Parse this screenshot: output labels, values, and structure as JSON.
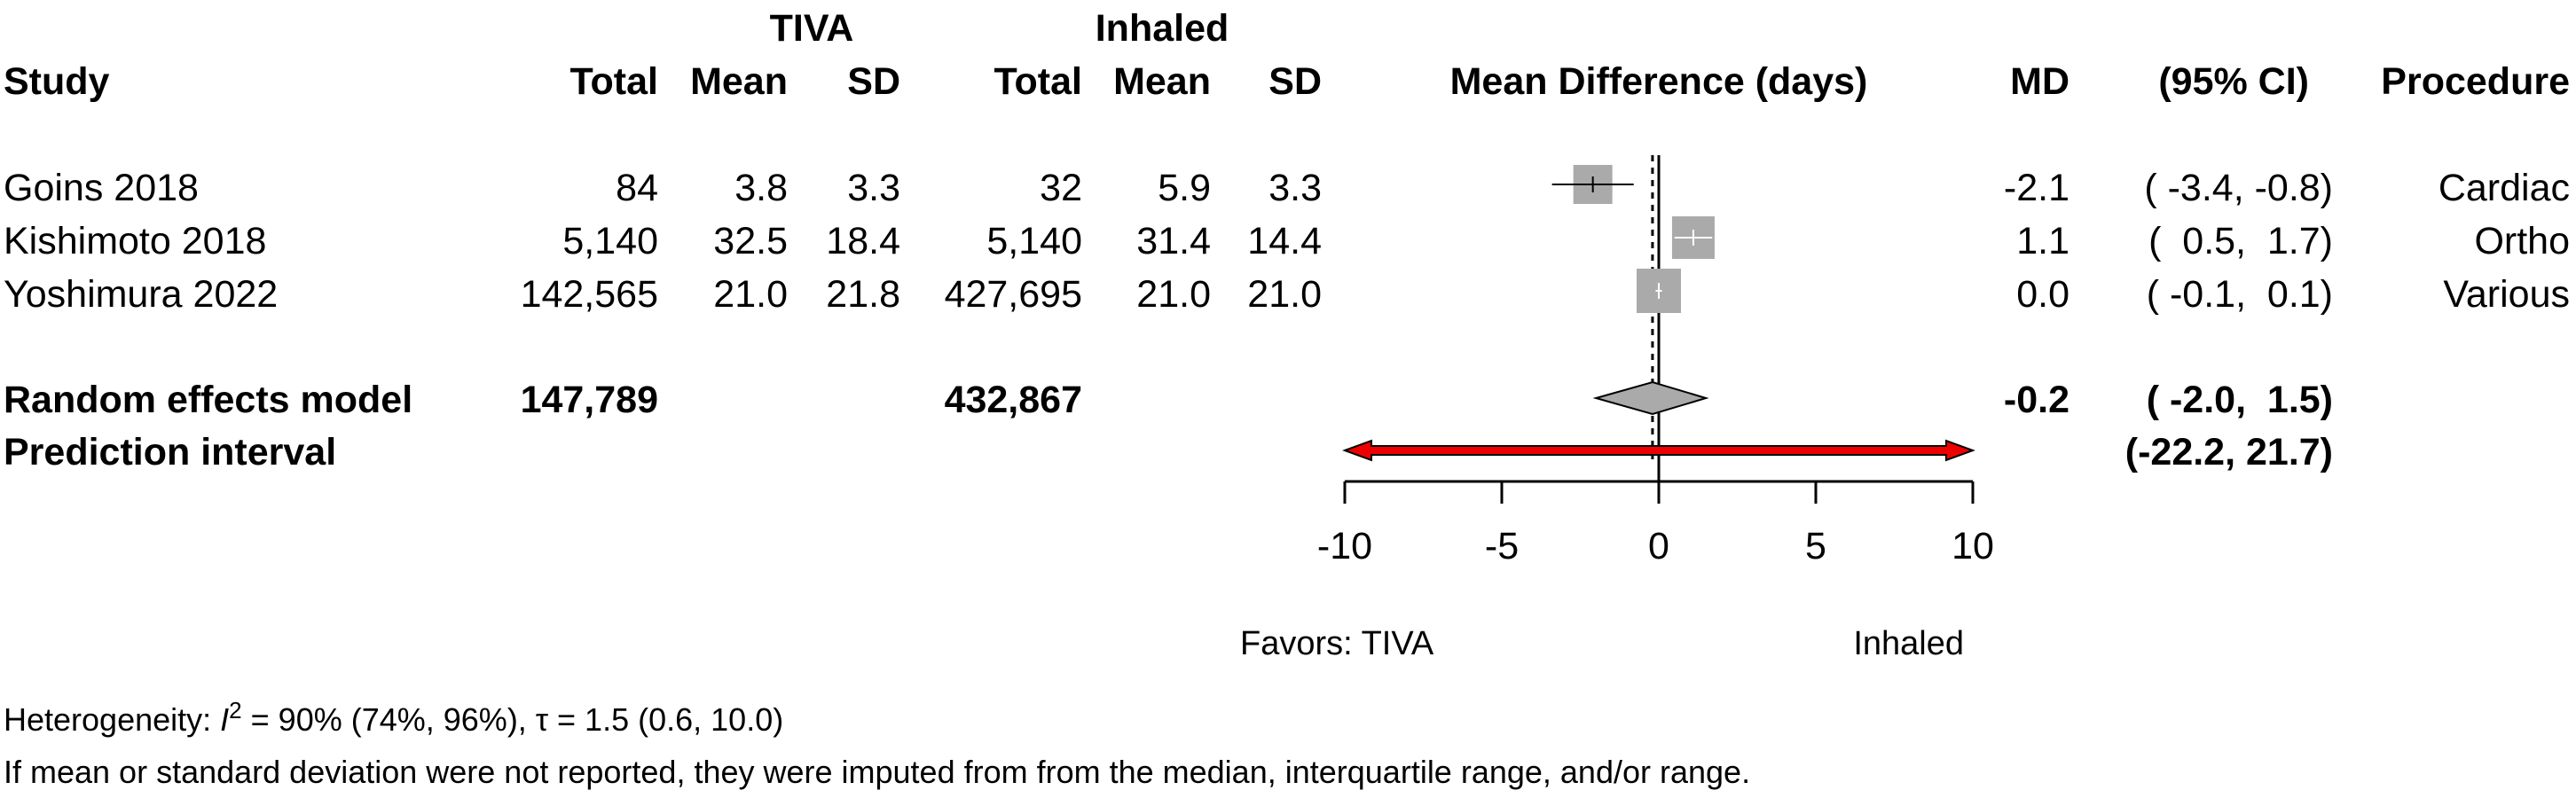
{
  "header": {
    "group1": "TIVA",
    "group2": "Inhaled",
    "study": "Study",
    "total1": "Total",
    "mean1": "Mean",
    "sd1": "SD",
    "total2": "Total",
    "mean2": "Mean",
    "sd2": "SD",
    "plot_title": "Mean Difference (days)",
    "md": "MD",
    "ci": "(95% CI)",
    "procedure": "Procedure"
  },
  "studies": [
    {
      "name": "Goins 2018",
      "total1": "84",
      "mean1": "3.8",
      "sd1": "3.3",
      "total2": "32",
      "mean2": "5.9",
      "sd2": "3.3",
      "md_text": "-2.1",
      "ci_text": "( -3.4, -0.8)",
      "procedure": "Cardiac"
    },
    {
      "name": "Kishimoto 2018",
      "total1": "5,140",
      "mean1": "32.5",
      "sd1": "18.4",
      "total2": "5,140",
      "mean2": "31.4",
      "sd2": "14.4",
      "md_text": "1.1",
      "ci_text": "(  0.5,  1.7)",
      "procedure": "Ortho"
    },
    {
      "name": "Yoshimura 2022",
      "total1": "142,565",
      "mean1": "21.0",
      "sd1": "21.8",
      "total2": "427,695",
      "mean2": "21.0",
      "sd2": "21.0",
      "md_text": "0.0",
      "ci_text": "( -0.1,  0.1)",
      "procedure": "Various"
    }
  ],
  "summary": {
    "label": "Random effects model",
    "total1": "147,789",
    "total2": "432,867",
    "md_text": "-0.2",
    "ci_text": "( -2.0,  1.5)"
  },
  "prediction": {
    "label": "Prediction interval",
    "ci_text": "(-22.2, 21.7)"
  },
  "axis": {
    "ticks": [
      "-10",
      "-5",
      "0",
      "5",
      "10"
    ],
    "favors_left": "Favors: TIVA",
    "favors_right": "Inhaled"
  },
  "footer": {
    "heterogeneity_prefix": "Heterogeneity: ",
    "i2_symbol": "I",
    "i2_sup": "2",
    "heterogeneity_rest": " = 90% (74%, 96%), τ = 1.5 (0.6, 10.0)",
    "note": "If mean or standard deviation were not reported, they were imputed from from the median, interquartile range, and/or range."
  },
  "chart_data": {
    "type": "forest",
    "xlabel": "Mean Difference (days)",
    "xlim": [
      -10,
      10
    ],
    "null_line": 0,
    "studies": [
      {
        "name": "Goins 2018",
        "md": -2.1,
        "ci_low": -3.4,
        "ci_high": -0.8
      },
      {
        "name": "Kishimoto 2018",
        "md": 1.1,
        "ci_low": 0.5,
        "ci_high": 1.7
      },
      {
        "name": "Yoshimura 2022",
        "md": 0.0,
        "ci_low": -0.1,
        "ci_high": 0.1
      }
    ],
    "pooled": {
      "md": -0.2,
      "ci_low": -2.0,
      "ci_high": 1.5
    },
    "prediction_interval": {
      "low": -22.2,
      "high": 21.7
    },
    "colors": {
      "square": "#aaaaaa",
      "diamond": "#aaaaaa",
      "prediction": "#ee0000"
    }
  }
}
